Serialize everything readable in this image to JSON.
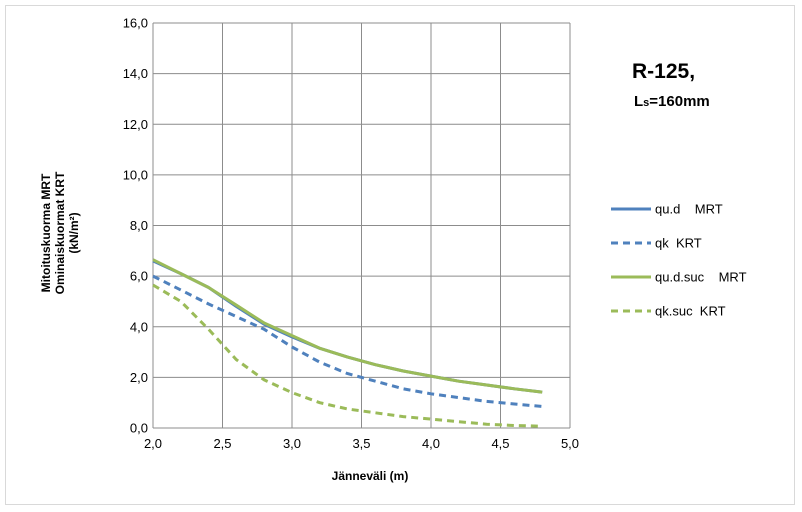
{
  "chart_data": {
    "type": "line",
    "title": "",
    "xlabel": "Jänneväli (m)",
    "ylabel_lines": [
      "Mitoituskuorma MRT",
      "Ominaiskuormat KRT",
      "(kN/m²)"
    ],
    "xlim": [
      2.0,
      5.0
    ],
    "ylim": [
      0.0,
      16.0
    ],
    "x_ticks": [
      2.0,
      2.5,
      3.0,
      3.5,
      4.0,
      4.5,
      5.0
    ],
    "x_tick_labels": [
      "2,0",
      "2,5",
      "3,0",
      "3,5",
      "4,0",
      "4,5",
      "5,0"
    ],
    "y_ticks": [
      0,
      2,
      4,
      6,
      8,
      10,
      12,
      14,
      16
    ],
    "y_tick_labels": [
      "0,0",
      "2,0",
      "4,0",
      "6,0",
      "8,0",
      "10,0",
      "12,0",
      "14,0",
      "16,0"
    ],
    "grid": true,
    "legend_position": "right",
    "annotation": {
      "main": "R-125,",
      "sub_prefix": "L",
      "sub_small": "s",
      "sub_suffix": "=160mm"
    },
    "series": [
      {
        "name": "qu.d    MRT",
        "color": "#4f81bd",
        "dash": "solid",
        "x": [
          2.0,
          2.2,
          2.4,
          2.6,
          2.8,
          3.0,
          3.2,
          3.4,
          3.6,
          3.8,
          4.0,
          4.2,
          4.4,
          4.6,
          4.8
        ],
        "y": [
          6.6,
          6.1,
          5.55,
          4.8,
          4.1,
          3.6,
          3.15,
          2.8,
          2.5,
          2.25,
          2.05,
          1.85,
          1.7,
          1.55,
          1.42
        ]
      },
      {
        "name": "qk  KRT",
        "color": "#4f81bd",
        "dash": "dashed",
        "x": [
          2.0,
          2.2,
          2.4,
          2.6,
          2.8,
          3.0,
          3.2,
          3.4,
          3.6,
          3.8,
          4.0,
          4.2,
          4.4,
          4.6,
          4.8
        ],
        "y": [
          6.0,
          5.45,
          4.9,
          4.4,
          3.9,
          3.2,
          2.6,
          2.15,
          1.85,
          1.55,
          1.35,
          1.2,
          1.05,
          0.95,
          0.85
        ]
      },
      {
        "name": "qu.d.suc    MRT",
        "color": "#9bbb59",
        "dash": "solid",
        "x": [
          2.0,
          2.2,
          2.4,
          2.6,
          2.8,
          3.0,
          3.2,
          3.4,
          3.6,
          3.8,
          4.0,
          4.2,
          4.4,
          4.6,
          4.8
        ],
        "y": [
          6.65,
          6.1,
          5.55,
          4.85,
          4.15,
          3.65,
          3.15,
          2.8,
          2.5,
          2.25,
          2.05,
          1.85,
          1.7,
          1.55,
          1.42
        ]
      },
      {
        "name": "qk.suc  KRT",
        "color": "#9bbb59",
        "dash": "dashed",
        "x": [
          2.0,
          2.2,
          2.4,
          2.6,
          2.8,
          3.0,
          3.2,
          3.4,
          3.6,
          3.8,
          4.0,
          4.2,
          4.4,
          4.6,
          4.8
        ],
        "y": [
          5.65,
          5.0,
          3.9,
          2.7,
          1.9,
          1.4,
          1.0,
          0.75,
          0.6,
          0.45,
          0.35,
          0.25,
          0.15,
          0.1,
          0.07
        ]
      }
    ]
  }
}
